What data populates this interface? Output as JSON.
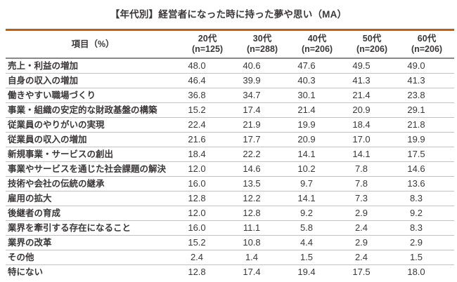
{
  "colors": {
    "table_top_border": "#C55A11",
    "header_divider": "#898989",
    "row_divider": "#C3C3C3",
    "text": "#3A3838"
  },
  "chart_data": {
    "type": "table",
    "title": "【年代別】経営者になった時に持った夢や思い（MA）",
    "item_header": "項目（%）",
    "columns": [
      {
        "age": "20代",
        "n": "(n=125)"
      },
      {
        "age": "30代",
        "n": "(n=288)"
      },
      {
        "age": "40代",
        "n": "(n=206)"
      },
      {
        "age": "50代",
        "n": "(n=206)"
      },
      {
        "age": "60代",
        "n": "(n=206)"
      }
    ],
    "rows": [
      {
        "label": "売上・利益の増加",
        "values": [
          "48.0",
          "40.6",
          "47.6",
          "49.5",
          "49.0"
        ]
      },
      {
        "label": "自身の収入の増加",
        "values": [
          "46.4",
          "39.9",
          "40.3",
          "41.3",
          "41.3"
        ]
      },
      {
        "label": "働きやすい職場づくり",
        "values": [
          "36.8",
          "34.7",
          "30.1",
          "21.4",
          "23.8"
        ]
      },
      {
        "label": "事業・組織の安定的な財政基盤の構築",
        "values": [
          "15.2",
          "17.4",
          "21.4",
          "20.9",
          "29.1"
        ]
      },
      {
        "label": "従業員のやりがいの実現",
        "values": [
          "22.4",
          "21.9",
          "19.9",
          "18.4",
          "21.8"
        ]
      },
      {
        "label": "従業員の収入の増加",
        "values": [
          "21.6",
          "17.7",
          "20.9",
          "17.0",
          "19.9"
        ]
      },
      {
        "label": "新規事業・サービスの創出",
        "values": [
          "18.4",
          "22.2",
          "14.1",
          "14.1",
          "17.5"
        ]
      },
      {
        "label": "事業やサービスを通じた社会課題の解決",
        "values": [
          "12.0",
          "14.6",
          "10.2",
          "7.8",
          "14.6"
        ]
      },
      {
        "label": "技術や会社の伝統の継承",
        "values": [
          "16.0",
          "13.5",
          "9.7",
          "7.8",
          "13.6"
        ]
      },
      {
        "label": "雇用の拡大",
        "values": [
          "12.8",
          "12.2",
          "14.1",
          "7.3",
          "8.3"
        ]
      },
      {
        "label": "後継者の育成",
        "values": [
          "12.0",
          "12.8",
          "9.2",
          "2.9",
          "9.2"
        ]
      },
      {
        "label": "業界を牽引する存在になること",
        "values": [
          "16.0",
          "11.1",
          "5.8",
          "2.4",
          "8.3"
        ]
      },
      {
        "label": "業界の改革",
        "values": [
          "15.2",
          "10.8",
          "4.4",
          "2.9",
          "2.9"
        ]
      },
      {
        "label": "その他",
        "values": [
          "2.4",
          "1.4",
          "1.5",
          "2.4",
          "1.5"
        ]
      },
      {
        "label": "特にない",
        "values": [
          "12.8",
          "17.4",
          "19.4",
          "17.5",
          "18.0"
        ]
      }
    ]
  }
}
